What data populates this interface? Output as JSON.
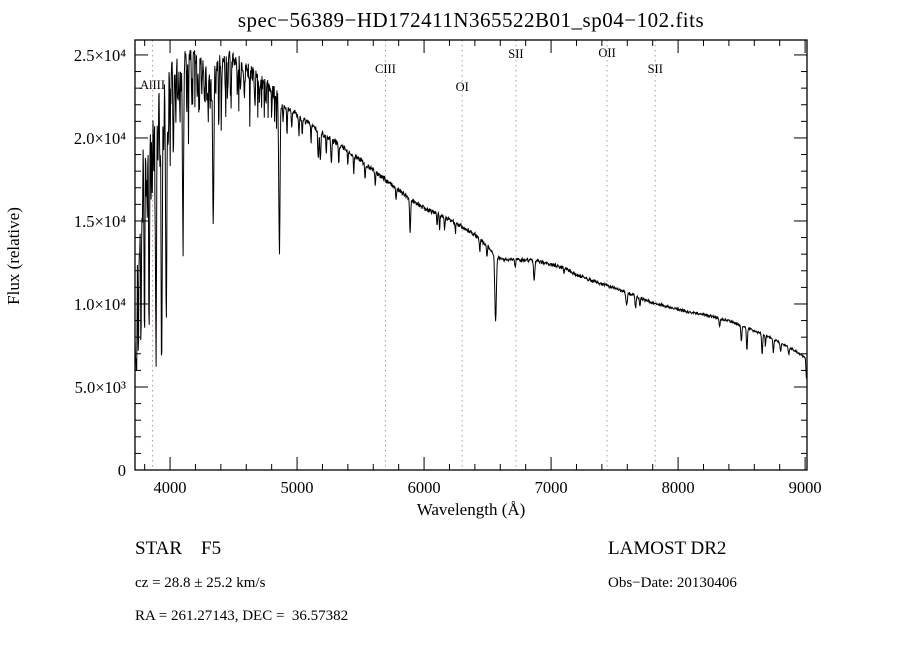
{
  "chart_data": {
    "type": "line",
    "title": "spec−56389−HD172411N365522B01_sp04−102.fits",
    "xlabel": "Wavelength (Å)",
    "ylabel": "Flux (relative)",
    "xlim": [
      3724,
      9015
    ],
    "ylim": [
      0,
      25900
    ],
    "xticks": [
      4000,
      5000,
      6000,
      7000,
      8000,
      9000
    ],
    "xtick_labels": [
      "4000",
      "5000",
      "6000",
      "7000",
      "8000",
      "9000"
    ],
    "yticks": [
      0,
      5000,
      10000,
      15000,
      20000,
      25000
    ],
    "ytick_labels": [
      "0",
      "5.0×10³",
      "1.0×10⁴",
      "1.5×10⁴",
      "2.0×10⁴",
      "2.5×10⁴"
    ],
    "grid": false,
    "line_color": "#000000",
    "marker_color": "#bb9999",
    "marker_lines": [
      {
        "label": "AlIII",
        "wavelength": 3862,
        "label_offset": 49
      },
      {
        "label": "CIII",
        "wavelength": 5696,
        "label_offset": 33
      },
      {
        "label": "OI",
        "wavelength": 6300,
        "label_offset": 51
      },
      {
        "label": "SII",
        "wavelength": 6723,
        "label_offset": 18
      },
      {
        "label": "OII",
        "wavelength": 7441,
        "label_offset": 17
      },
      {
        "label": "SII",
        "wavelength": 7820,
        "label_offset": 33
      }
    ],
    "continuum": [
      [
        3724,
        13500
      ],
      [
        3740,
        16500
      ],
      [
        3760,
        19000
      ],
      [
        3780,
        20000
      ],
      [
        3800,
        21000
      ],
      [
        3830,
        21800
      ],
      [
        3860,
        22300
      ],
      [
        3900,
        23200
      ],
      [
        3950,
        23800
      ],
      [
        4000,
        24200
      ],
      [
        4060,
        24800
      ],
      [
        4120,
        25100
      ],
      [
        4180,
        25000
      ],
      [
        4250,
        24900
      ],
      [
        4320,
        24700
      ],
      [
        4400,
        24700
      ],
      [
        4470,
        25000
      ],
      [
        4540,
        24700
      ],
      [
        4600,
        24300
      ],
      [
        4660,
        23900
      ],
      [
        4720,
        23500
      ],
      [
        4780,
        23100
      ],
      [
        4840,
        22700
      ],
      [
        4900,
        22000
      ],
      [
        4960,
        21700
      ],
      [
        5020,
        21300
      ],
      [
        5100,
        20900
      ],
      [
        5200,
        20300
      ],
      [
        5300,
        19800
      ],
      [
        5400,
        19300
      ],
      [
        5500,
        18700
      ],
      [
        5600,
        18100
      ],
      [
        5700,
        17500
      ],
      [
        5800,
        16900
      ],
      [
        5900,
        16300
      ],
      [
        6000,
        15800
      ],
      [
        6100,
        15500
      ],
      [
        6200,
        15100
      ],
      [
        6300,
        14700
      ],
      [
        6400,
        14200
      ],
      [
        6500,
        13500
      ],
      [
        6560,
        12900
      ],
      [
        6620,
        12700
      ],
      [
        6700,
        12700
      ],
      [
        6800,
        12700
      ],
      [
        6900,
        12600
      ],
      [
        7000,
        12400
      ],
      [
        7100,
        12200
      ],
      [
        7200,
        11800
      ],
      [
        7300,
        11500
      ],
      [
        7400,
        11200
      ],
      [
        7500,
        11000
      ],
      [
        7600,
        10700
      ],
      [
        7700,
        10400
      ],
      [
        7800,
        10100
      ],
      [
        7900,
        9900
      ],
      [
        8000,
        9700
      ],
      [
        8100,
        9500
      ],
      [
        8200,
        9400
      ],
      [
        8300,
        9200
      ],
      [
        8400,
        9000
      ],
      [
        8500,
        8700
      ],
      [
        8600,
        8400
      ],
      [
        8700,
        8100
      ],
      [
        8800,
        7700
      ],
      [
        8900,
        7300
      ],
      [
        8960,
        7000
      ],
      [
        9000,
        6800
      ],
      [
        9004,
        6600
      ],
      [
        9010,
        5500
      ]
    ],
    "absorption_lines": [
      [
        3712,
        0.4,
        5
      ],
      [
        3727,
        0.45,
        4
      ],
      [
        3736,
        0.58,
        4
      ],
      [
        3750,
        0.6,
        4
      ],
      [
        3760,
        0.3,
        3
      ],
      [
        3771,
        0.6,
        4
      ],
      [
        3782,
        0.25,
        3
      ],
      [
        3798,
        0.58,
        4
      ],
      [
        3812,
        0.2,
        3
      ],
      [
        3820,
        0.28,
        3
      ],
      [
        3835,
        0.62,
        4
      ],
      [
        3850,
        0.22,
        3
      ],
      [
        3860,
        0.25,
        3
      ],
      [
        3872,
        0.2,
        3
      ],
      [
        3889,
        0.64,
        5
      ],
      [
        3905,
        0.2,
        3
      ],
      [
        3920,
        0.22,
        3
      ],
      [
        3934,
        0.7,
        5
      ],
      [
        3950,
        0.2,
        3
      ],
      [
        3970,
        0.62,
        5
      ],
      [
        3985,
        0.18,
        3
      ],
      [
        4000,
        0.15,
        3
      ],
      [
        4026,
        0.22,
        4
      ],
      [
        4045,
        0.14,
        3
      ],
      [
        4063,
        0.12,
        3
      ],
      [
        4077,
        0.12,
        3
      ],
      [
        4102,
        0.42,
        5
      ],
      [
        4132,
        0.1,
        3
      ],
      [
        4144,
        0.12,
        3
      ],
      [
        4172,
        0.1,
        3
      ],
      [
        4215,
        0.1,
        3
      ],
      [
        4227,
        0.12,
        3
      ],
      [
        4250,
        0.1,
        3
      ],
      [
        4271,
        0.12,
        3
      ],
      [
        4290,
        0.1,
        3
      ],
      [
        4300,
        0.14,
        3
      ],
      [
        4315,
        0.1,
        3
      ],
      [
        4326,
        0.1,
        3
      ],
      [
        4340,
        0.4,
        5
      ],
      [
        4360,
        0.08,
        3
      ],
      [
        4383,
        0.14,
        3
      ],
      [
        4404,
        0.13,
        3
      ],
      [
        4435,
        0.07,
        3
      ],
      [
        4455,
        0.08,
        3
      ],
      [
        4481,
        0.1,
        3
      ],
      [
        4531,
        0.08,
        3
      ],
      [
        4554,
        0.07,
        3
      ],
      [
        4584,
        0.06,
        3
      ],
      [
        4629,
        0.06,
        3
      ],
      [
        4668,
        0.07,
        3
      ],
      [
        4703,
        0.06,
        3
      ],
      [
        4755,
        0.05,
        3
      ],
      [
        4800,
        0.05,
        3
      ],
      [
        4861,
        0.42,
        5
      ],
      [
        4891,
        0.05,
        3
      ],
      [
        4921,
        0.07,
        3
      ],
      [
        4958,
        0.05,
        3
      ],
      [
        5015,
        0.06,
        3
      ],
      [
        5041,
        0.05,
        3
      ],
      [
        5110,
        0.05,
        3
      ],
      [
        5167,
        0.08,
        4
      ],
      [
        5183,
        0.08,
        4
      ],
      [
        5230,
        0.05,
        3
      ],
      [
        5270,
        0.07,
        4
      ],
      [
        5328,
        0.06,
        3
      ],
      [
        5400,
        0.05,
        3
      ],
      [
        5446,
        0.06,
        3
      ],
      [
        5535,
        0.05,
        3
      ],
      [
        5615,
        0.05,
        3
      ],
      [
        5780,
        0.04,
        3
      ],
      [
        5890,
        0.12,
        4
      ],
      [
        6102,
        0.05,
        3
      ],
      [
        6122,
        0.06,
        3
      ],
      [
        6162,
        0.05,
        3
      ],
      [
        6247,
        0.04,
        3
      ],
      [
        6439,
        0.05,
        3
      ],
      [
        6495,
        0.05,
        3
      ],
      [
        6563,
        0.3,
        6
      ],
      [
        6717,
        0.04,
        3
      ],
      [
        6867,
        0.09,
        5
      ],
      [
        7100,
        0.03,
        3
      ],
      [
        7594,
        0.07,
        6
      ],
      [
        7665,
        0.07,
        4
      ],
      [
        7699,
        0.05,
        4
      ],
      [
        8327,
        0.05,
        4
      ],
      [
        8498,
        0.11,
        4
      ],
      [
        8542,
        0.16,
        4
      ],
      [
        8662,
        0.15,
        4
      ],
      [
        8688,
        0.08,
        3
      ],
      [
        8750,
        0.1,
        4
      ],
      [
        8807,
        0.07,
        4
      ],
      [
        8872,
        0.06,
        4
      ]
    ],
    "noise": {
      "seed": 7,
      "blue_amp": 0.02,
      "red_amp": 0.008,
      "blue_end": 4900,
      "blue_spike_prob": 0.1
    }
  },
  "annotations": {
    "left": {
      "line1": "STAR    F5",
      "line2": "cz = 28.8 ± 25.2 km/s",
      "line3": "RA = 261.27143, DEC =  36.57382"
    },
    "right": {
      "line1": "LAMOST DR2",
      "line2": "Obs−Date: 20130406"
    }
  }
}
